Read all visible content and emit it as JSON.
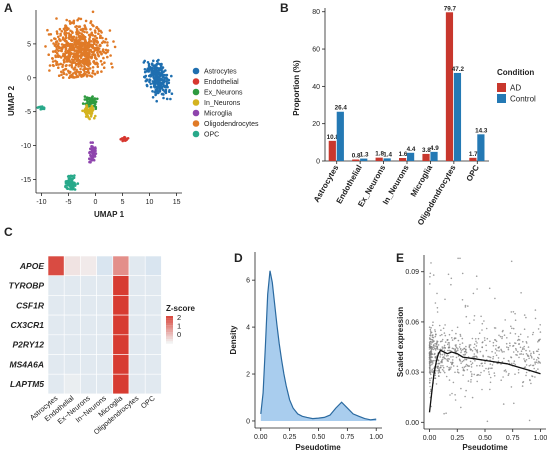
{
  "panels": {
    "A": {
      "label": "A",
      "xlabel": "UMAP 1",
      "ylabel": "UMAP 2",
      "xticks": [
        "-10",
        "-5",
        "0",
        "5",
        "10",
        "15"
      ],
      "yticks": [
        "5",
        "0",
        "-5",
        "-10",
        "-15"
      ],
      "legend": [
        {
          "name": "Astrocytes",
          "color": "#1f6fb0"
        },
        {
          "name": "Endothelial",
          "color": "#d7372f"
        },
        {
          "name": "Ex_Neurons",
          "color": "#2e9a3f"
        },
        {
          "name": "In_Neurons",
          "color": "#d4b31f"
        },
        {
          "name": "Microglia",
          "color": "#8e44ad"
        },
        {
          "name": "Oligodendrocytes",
          "color": "#e07a27"
        },
        {
          "name": "OPC",
          "color": "#28a98a"
        }
      ]
    },
    "B": {
      "label": "B",
      "ylabel": "Proportion (%)",
      "legend_title": "Condition",
      "legend": [
        {
          "name": "AD",
          "color": "#c8372d"
        },
        {
          "name": "Control",
          "color": "#2479b4"
        }
      ],
      "yticks": [
        "0",
        "20",
        "40",
        "60",
        "80"
      ]
    },
    "C": {
      "label": "C",
      "legend_title": "Z-score",
      "legend_ticks": [
        "2",
        "1",
        "0"
      ]
    },
    "D": {
      "label": "D",
      "xlabel": "Pseudotime",
      "ylabel": "Density",
      "xticks": [
        "0.00",
        "0.25",
        "0.50",
        "0.75",
        "1.00"
      ],
      "yticks": [
        "0",
        "2",
        "4",
        "6"
      ]
    },
    "E": {
      "label": "E",
      "xlabel": "Pseudotime",
      "ylabel": "Scaled expression",
      "xticks": [
        "0.00",
        "0.25",
        "0.50",
        "0.75",
        "1.00"
      ],
      "yticks": [
        "0.00",
        "0.03",
        "0.06",
        "0.09"
      ]
    }
  },
  "chart_data": [
    {
      "type": "scatter",
      "panel": "A",
      "xlim": [
        -11,
        16
      ],
      "ylim": [
        -17,
        10
      ],
      "clusters": [
        {
          "name": "Oligodendrocytes",
          "color": "#e07a27",
          "center": [
            -3,
            4
          ],
          "spread": [
            4.5,
            4
          ]
        },
        {
          "name": "Astrocytes",
          "color": "#1f6fb0",
          "center": [
            11.5,
            0
          ],
          "spread": [
            2.5,
            2.5
          ]
        },
        {
          "name": "Ex_Neurons",
          "color": "#2e9a3f",
          "center": [
            -1,
            -3.5
          ],
          "spread": [
            1.2,
            0.8
          ]
        },
        {
          "name": "In_Neurons",
          "color": "#d4b31f",
          "center": [
            -1.2,
            -5
          ],
          "spread": [
            1,
            0.8
          ]
        },
        {
          "name": "Microglia",
          "color": "#8e44ad",
          "center": [
            -0.5,
            -11
          ],
          "spread": [
            0.6,
            1.2
          ]
        },
        {
          "name": "Endothelial",
          "color": "#d7372f",
          "center": [
            5.5,
            -9
          ],
          "spread": [
            0.7,
            0.3
          ]
        },
        {
          "name": "OPC",
          "color": "#28a98a",
          "center": [
            -4.5,
            -15.5
          ],
          "spread": [
            1,
            1
          ]
        }
      ]
    },
    {
      "type": "bar",
      "panel": "B",
      "categories": [
        "Astrocytes",
        "Endothelial",
        "Ex_Neurons",
        "In_Neurons",
        "Microglia",
        "Oligodendrocytes",
        "OPC"
      ],
      "series": [
        {
          "name": "AD",
          "values": [
            10.8,
            0.8,
            1.8,
            1.6,
            3.8,
            79.7,
            1.7
          ],
          "labels": [
            "10.8",
            "0.8",
            "1.8",
            "1.6",
            "3.8",
            "79.7",
            "1.7"
          ]
        },
        {
          "name": "Control",
          "values": [
            26.4,
            1.3,
            1.4,
            4.4,
            4.9,
            47.2,
            14.3
          ],
          "labels": [
            "26.4",
            "1.3",
            "1.4",
            "4.4",
            "4.9",
            "47.2",
            "14.3"
          ]
        }
      ],
      "ylabel": "Proportion (%)",
      "ylim": [
        0,
        82
      ]
    },
    {
      "type": "heatmap",
      "panel": "C",
      "rows": [
        "APOE",
        "TYROBP",
        "CSF1R",
        "CX3CR1",
        "P2RY12",
        "MS4A6A",
        "LAPTM5"
      ],
      "columns": [
        "Astrocytes",
        "Endothelial",
        "Ex−Neurons",
        "In−Neurons",
        "Microglia",
        "Oligodendrocytes",
        "OPC"
      ],
      "values": [
        [
          2.2,
          0.2,
          0.1,
          -0.3,
          1.3,
          -0.2,
          -0.3
        ],
        [
          -0.2,
          -0.2,
          -0.2,
          -0.2,
          2.4,
          -0.2,
          -0.2
        ],
        [
          -0.2,
          -0.2,
          -0.2,
          -0.2,
          2.4,
          -0.2,
          -0.2
        ],
        [
          -0.2,
          -0.2,
          -0.2,
          -0.2,
          2.4,
          -0.2,
          -0.2
        ],
        [
          -0.2,
          -0.2,
          -0.2,
          -0.2,
          2.4,
          -0.2,
          -0.2
        ],
        [
          -0.2,
          -0.2,
          -0.2,
          -0.2,
          2.4,
          -0.2,
          -0.2
        ],
        [
          -0.2,
          -0.1,
          -0.2,
          -0.2,
          2.4,
          -0.2,
          -0.2
        ]
      ]
    },
    {
      "type": "area",
      "panel": "D",
      "x": [
        0.0,
        0.02,
        0.04,
        0.06,
        0.08,
        0.1,
        0.12,
        0.14,
        0.16,
        0.18,
        0.2,
        0.22,
        0.25,
        0.28,
        0.32,
        0.36,
        0.4,
        0.45,
        0.5,
        0.55,
        0.6,
        0.65,
        0.7,
        0.75,
        0.8,
        0.85,
        0.9,
        0.95,
        1.0
      ],
      "y": [
        0.3,
        1.2,
        3.2,
        5.4,
        6.4,
        5.9,
        5.0,
        4.1,
        3.3,
        2.6,
        2.0,
        1.5,
        0.9,
        0.55,
        0.3,
        0.2,
        0.15,
        0.1,
        0.12,
        0.15,
        0.25,
        0.55,
        0.8,
        0.55,
        0.3,
        0.2,
        0.1,
        0.05,
        0.08
      ],
      "xlabel": "Pseudotime",
      "ylabel": "Density",
      "xlim": [
        -0.05,
        1.05
      ],
      "ylim": [
        -0.3,
        7.2
      ]
    },
    {
      "type": "scatter",
      "panel": "E",
      "trend_x": [
        0.0,
        0.02,
        0.04,
        0.06,
        0.08,
        0.1,
        0.13,
        0.16,
        0.2,
        0.25,
        0.3,
        0.4,
        0.5,
        0.6,
        0.7,
        0.8,
        0.9,
        1.0
      ],
      "trend_y": [
        0.006,
        0.018,
        0.029,
        0.036,
        0.041,
        0.043,
        0.042,
        0.041,
        0.042,
        0.041,
        0.039,
        0.038,
        0.037,
        0.036,
        0.035,
        0.033,
        0.031,
        0.029
      ],
      "xlabel": "Pseudotime",
      "ylabel": "Scaled expression",
      "xlim": [
        -0.05,
        1.05
      ],
      "ylim": [
        -0.004,
        0.1
      ]
    }
  ]
}
